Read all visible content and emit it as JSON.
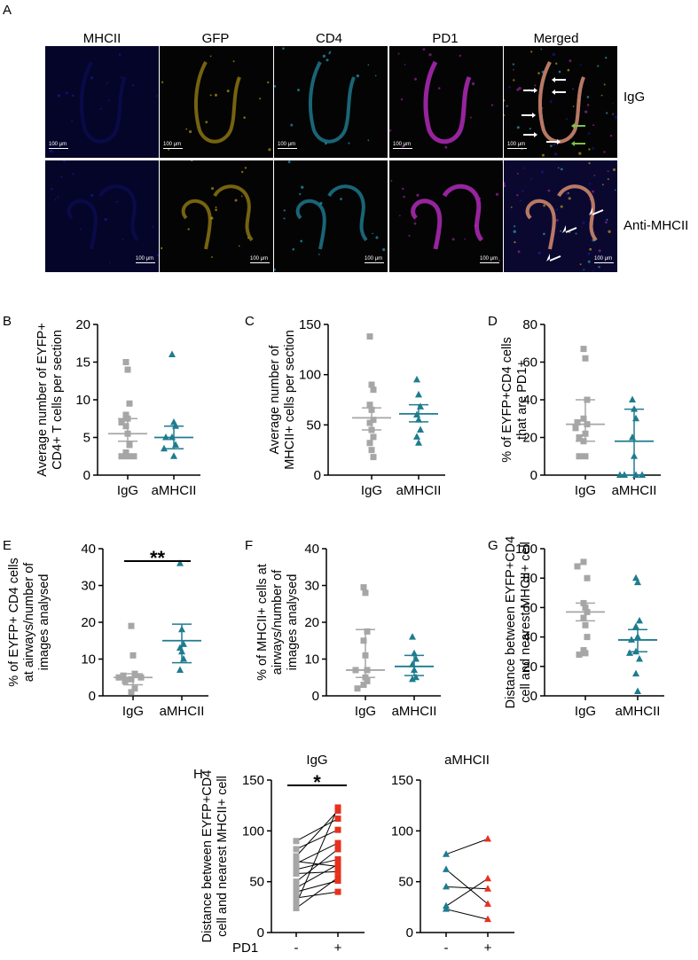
{
  "panel_a": {
    "letter": "A",
    "columns": [
      "MHCII",
      "GFP",
      "CD4",
      "PD1",
      "Merged"
    ],
    "rows": [
      "IgG",
      "Anti-MHCII"
    ],
    "scale_label": "100 μm",
    "channel_colors": {
      "MHCII": "#1a1aa8",
      "GFP": "#d4b21a",
      "CD4": "#2bb6d6",
      "PD1": "#b02ab8"
    },
    "arrow_colors": {
      "white": "#ffffff",
      "green": "#7cc24a"
    }
  },
  "chart_data": [
    {
      "id": "B",
      "type": "scatter",
      "ylabel": [
        "Average number of  EYFP+",
        "CD4+ T cells per section"
      ],
      "categories": [
        "IgG",
        "aMHCII"
      ],
      "ylim": [
        0,
        20
      ],
      "yticks": [
        0,
        5,
        10,
        15,
        20
      ],
      "series": [
        {
          "values": [
            15,
            14,
            9.5,
            8,
            7.5,
            7,
            6.5,
            5.5,
            4,
            3,
            2.5,
            2.5,
            2.5
          ],
          "center": 5.5,
          "err": [
            4.5,
            7.5
          ]
        },
        {
          "values": [
            16,
            7,
            6.5,
            5,
            5,
            4,
            3.5,
            2.5
          ],
          "center": 5,
          "err": [
            3.5,
            6.5
          ]
        }
      ]
    },
    {
      "id": "C",
      "type": "scatter",
      "ylabel": [
        "Average number of",
        "MHCII+ cells per section"
      ],
      "categories": [
        "IgG",
        "aMHCII"
      ],
      "ylim": [
        0,
        150
      ],
      "yticks": [
        0,
        50,
        100,
        150
      ],
      "series": [
        {
          "values": [
            138,
            90,
            85,
            70,
            65,
            55,
            52,
            45,
            38,
            32,
            25,
            18
          ],
          "center": 57,
          "err": [
            45,
            67
          ]
        },
        {
          "values": [
            95,
            80,
            68,
            60,
            55,
            45,
            38,
            32
          ],
          "center": 61,
          "err": [
            53,
            70
          ]
        }
      ]
    },
    {
      "id": "D",
      "type": "scatter",
      "ylabel": [
        "% of EYFP+CD4 cells",
        "that are PD1+"
      ],
      "categories": [
        "IgG",
        "aMHCII"
      ],
      "ylim": [
        0,
        80
      ],
      "yticks": [
        0,
        20,
        40,
        60,
        80
      ],
      "series": [
        {
          "values": [
            67,
            62,
            40,
            30,
            28,
            27,
            25,
            22,
            20,
            18,
            10,
            10
          ],
          "center": 27,
          "err": [
            18,
            40
          ]
        },
        {
          "values": [
            40,
            35,
            30,
            20,
            10,
            0,
            0,
            0,
            0
          ],
          "center": 18,
          "err": [
            0,
            35
          ]
        }
      ]
    },
    {
      "id": "E",
      "type": "scatter",
      "ylabel": [
        "% of EYFP+ CD4 cells",
        "at airways/number of",
        "images analysed"
      ],
      "categories": [
        "IgG",
        "aMHCII"
      ],
      "ylim": [
        0,
        40
      ],
      "yticks": [
        0,
        10,
        20,
        30,
        40
      ],
      "significance": "**",
      "series": [
        {
          "values": [
            19,
            11,
            6,
            5.5,
            5,
            5,
            4.5,
            4,
            2,
            1
          ],
          "center": 5,
          "err": [
            3,
            6
          ]
        },
        {
          "values": [
            36,
            18,
            14,
            13,
            12,
            10,
            7
          ],
          "center": 15,
          "err": [
            9,
            19.5
          ]
        }
      ]
    },
    {
      "id": "F",
      "type": "scatter",
      "ylabel": [
        "% of MHCII+ cells at",
        "airways/number of",
        "images analysed"
      ],
      "categories": [
        "IgG",
        "aMHCII"
      ],
      "ylim": [
        0,
        40
      ],
      "yticks": [
        0,
        10,
        20,
        30,
        40
      ],
      "series": [
        {
          "values": [
            29.5,
            28,
            17.5,
            15,
            11,
            7,
            7,
            5,
            4,
            3,
            2
          ],
          "center": 7,
          "err": [
            5,
            18
          ]
        },
        {
          "values": [
            16,
            11.5,
            10,
            8.5,
            7,
            5,
            4.5
          ],
          "center": 8,
          "err": [
            5.5,
            11
          ]
        }
      ]
    },
    {
      "id": "G",
      "type": "scatter",
      "ylabel": [
        "Distance between EYFP+CD4",
        "cell and nearest MHCII+ cell"
      ],
      "categories": [
        "IgG",
        "aMHCII"
      ],
      "ylim": [
        0,
        100
      ],
      "yticks": [
        0,
        20,
        40,
        60,
        80,
        100
      ],
      "series": [
        {
          "values": [
            91,
            88,
            80,
            63,
            60,
            57,
            53,
            48,
            40,
            31,
            29,
            28
          ],
          "center": 57,
          "err": [
            51,
            63
          ]
        },
        {
          "values": [
            80,
            77,
            51,
            47,
            40,
            38,
            30,
            29,
            25,
            15,
            3
          ],
          "center": 38,
          "err": [
            30,
            45
          ]
        }
      ]
    },
    {
      "id": "H1",
      "type": "line",
      "title": "IgG",
      "ylabel": [
        "Distance between EYFP+CD4",
        "cell and nearest MHCII+ cell"
      ],
      "categories": [
        "-",
        "+"
      ],
      "xlabel": "PD1",
      "ylim": [
        0,
        150
      ],
      "yticks": [
        0,
        50,
        100,
        150
      ],
      "significance": "*",
      "pairs": [
        [
          90,
          112
        ],
        [
          82,
          101
        ],
        [
          75,
          120
        ],
        [
          70,
          65
        ],
        [
          68,
          88
        ],
        [
          62,
          72
        ],
        [
          58,
          60
        ],
        [
          50,
          82
        ],
        [
          44,
          67
        ],
        [
          40,
          51
        ],
        [
          34,
          40
        ],
        [
          28,
          123
        ],
        [
          24,
          54
        ]
      ]
    },
    {
      "id": "H2",
      "type": "line",
      "title": "aMHCII",
      "categories": [
        "-",
        "+"
      ],
      "ylim": [
        0,
        150
      ],
      "yticks": [
        0,
        50,
        100,
        150
      ],
      "pairs": [
        [
          77,
          92
        ],
        [
          62,
          28
        ],
        [
          45,
          43
        ],
        [
          26,
          53
        ],
        [
          23,
          13
        ]
      ]
    }
  ],
  "colors": {
    "igg": "#a6a6a6",
    "amhcii": "#1e7c8f",
    "h_minus_igg": "#a6a6a6",
    "h_minus_amhcii": "#1e7c8f",
    "h_plus": "#e8301e"
  }
}
